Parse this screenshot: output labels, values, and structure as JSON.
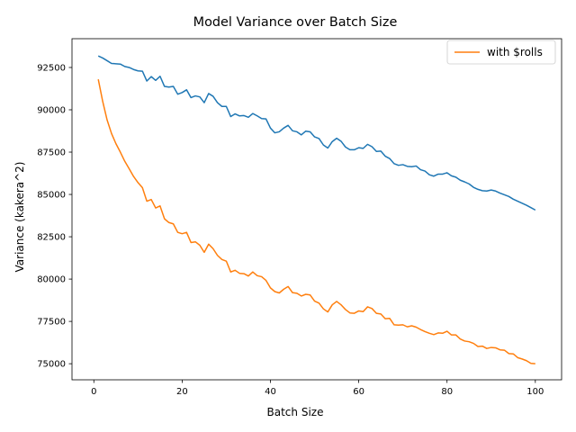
{
  "chart_data": {
    "type": "line",
    "title": "Model Variance over Batch Size",
    "xlabel": "Batch Size",
    "ylabel": "Variance (kakera^2)",
    "xlim": [
      -4.95,
      105.95
    ],
    "ylim": [
      74050,
      94200
    ],
    "xticks": [
      0,
      20,
      40,
      60,
      80,
      100
    ],
    "yticks": [
      75000,
      77500,
      80000,
      82500,
      85000,
      87500,
      90000,
      92500
    ],
    "ytick_labels": [
      "75000",
      "77500",
      "80000",
      "82500",
      "85000",
      "87500",
      "90000",
      "92500"
    ],
    "grid": false,
    "legend_position": "top-right",
    "legend_entries": [
      "with $rolls"
    ],
    "series": [
      {
        "color": "#1f77b4",
        "x": [
          1,
          2,
          3,
          4,
          5,
          6,
          7,
          8,
          9,
          10,
          11,
          12,
          13,
          14,
          15,
          16,
          17,
          18,
          19,
          20,
          21,
          22,
          23,
          24,
          25,
          26,
          27,
          28,
          29,
          30,
          31,
          32,
          33,
          34,
          35,
          36,
          37,
          38,
          39,
          40,
          41,
          42,
          43,
          44,
          45,
          46,
          47,
          48,
          49,
          50,
          51,
          52,
          53,
          54,
          55,
          56,
          57,
          58,
          59,
          60,
          61,
          62,
          63,
          64,
          65,
          66,
          67,
          68,
          69,
          70,
          71,
          72,
          73,
          74,
          75,
          76,
          77,
          78,
          79,
          80,
          81,
          82,
          83,
          84,
          85,
          86,
          87,
          88,
          89,
          90,
          91,
          92,
          93,
          94,
          95,
          96,
          97,
          98,
          99,
          100
        ],
        "values": [
          93180,
          93060,
          92900,
          92740,
          92720,
          92700,
          92560,
          92500,
          92380,
          92300,
          92280,
          91700,
          91960,
          91740,
          91980,
          91380,
          91340,
          91380,
          90920,
          91020,
          91180,
          90720,
          90820,
          90760,
          90420,
          90960,
          90800,
          90420,
          90200,
          90200,
          89600,
          89760,
          89640,
          89660,
          89560,
          89780,
          89640,
          89480,
          89460,
          88920,
          88640,
          88700,
          88920,
          89080,
          88760,
          88700,
          88520,
          88740,
          88700,
          88400,
          88300,
          87920,
          87740,
          88120,
          88320,
          88140,
          87800,
          87640,
          87640,
          87760,
          87720,
          87960,
          87820,
          87540,
          87560,
          87260,
          87120,
          86820,
          86720,
          86760,
          86660,
          86640,
          86680,
          86460,
          86380,
          86160,
          86080,
          86200,
          86200,
          86280,
          86100,
          86020,
          85840,
          85740,
          85620,
          85420,
          85300,
          85220,
          85200,
          85260,
          85200,
          85080,
          84980,
          84880,
          84720,
          84600,
          84480,
          84360,
          84220,
          84080
        ]
      },
      {
        "name": "with $rolls",
        "color": "#ff7f0e",
        "x": [
          1,
          2,
          3,
          4,
          5,
          6,
          7,
          8,
          9,
          10,
          11,
          12,
          13,
          14,
          15,
          16,
          17,
          18,
          19,
          20,
          21,
          22,
          23,
          24,
          25,
          26,
          27,
          28,
          29,
          30,
          31,
          32,
          33,
          34,
          35,
          36,
          37,
          38,
          39,
          40,
          41,
          42,
          43,
          44,
          45,
          46,
          47,
          48,
          49,
          50,
          51,
          52,
          53,
          54,
          55,
          56,
          57,
          58,
          59,
          60,
          61,
          62,
          63,
          64,
          65,
          66,
          67,
          68,
          69,
          70,
          71,
          72,
          73,
          74,
          75,
          76,
          77,
          78,
          79,
          80,
          81,
          82,
          83,
          84,
          85,
          86,
          87,
          88,
          89,
          90,
          91,
          92,
          93,
          94,
          95,
          96,
          97,
          98,
          99,
          100
        ],
        "values": [
          91800,
          90500,
          89400,
          88600,
          88000,
          87500,
          86960,
          86520,
          86060,
          85700,
          85400,
          84600,
          84700,
          84200,
          84320,
          83560,
          83340,
          83260,
          82760,
          82680,
          82760,
          82160,
          82200,
          82000,
          81580,
          82060,
          81800,
          81400,
          81160,
          81060,
          80420,
          80520,
          80340,
          80320,
          80180,
          80420,
          80200,
          80140,
          79920,
          79480,
          79260,
          79180,
          79400,
          79560,
          79200,
          79160,
          79000,
          79100,
          79060,
          78700,
          78580,
          78240,
          78060,
          78480,
          78680,
          78480,
          78200,
          78000,
          77980,
          78120,
          78080,
          78360,
          78260,
          77980,
          77940,
          77660,
          77680,
          77300,
          77280,
          77300,
          77180,
          77240,
          77160,
          77020,
          76900,
          76800,
          76720,
          76820,
          76800,
          76920,
          76700,
          76700,
          76460,
          76340,
          76300,
          76200,
          76020,
          76040,
          75900,
          75960,
          75940,
          75820,
          75800,
          75600,
          75580,
          75360,
          75280,
          75180,
          75020,
          75000
        ]
      }
    ]
  }
}
